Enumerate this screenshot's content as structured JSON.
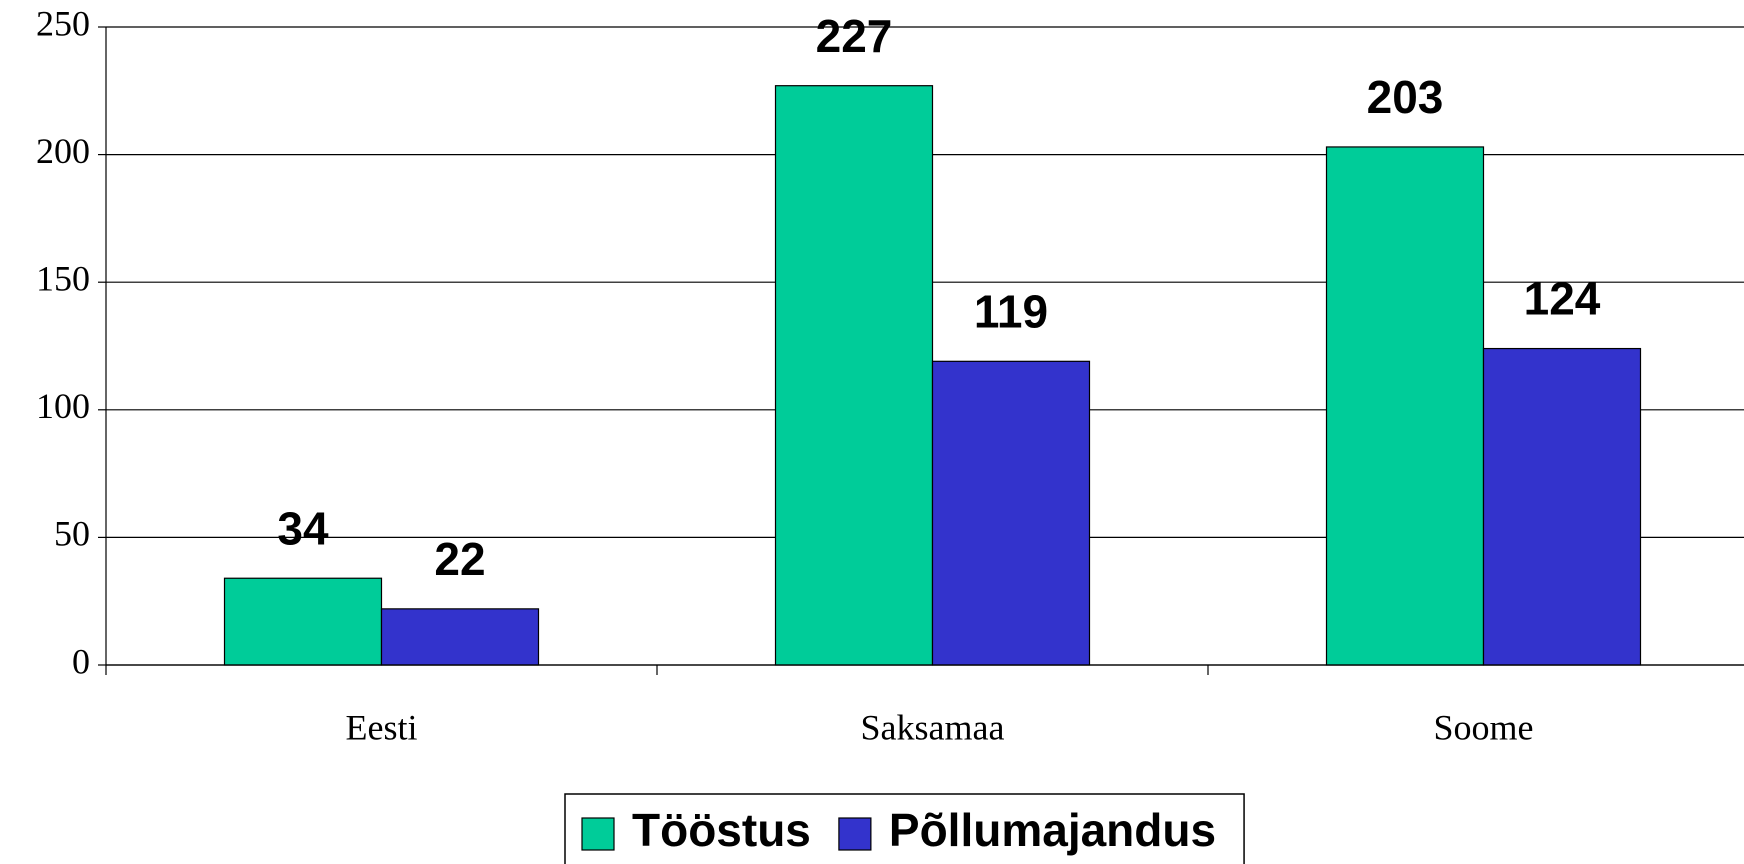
{
  "chart_data": {
    "type": "bar",
    "categories": [
      "Eesti",
      "Saksamaa",
      "Soome"
    ],
    "series": [
      {
        "name": "Tööstus",
        "color": "#00cc99",
        "values": [
          34,
          227,
          203
        ]
      },
      {
        "name": "Põllumajandus",
        "color": "#3333cc",
        "values": [
          22,
          119,
          124
        ]
      }
    ],
    "ylim": [
      0,
      250
    ],
    "yticks": [
      0,
      50,
      100,
      150,
      200,
      250
    ],
    "grid": true,
    "legend": "bottom"
  }
}
